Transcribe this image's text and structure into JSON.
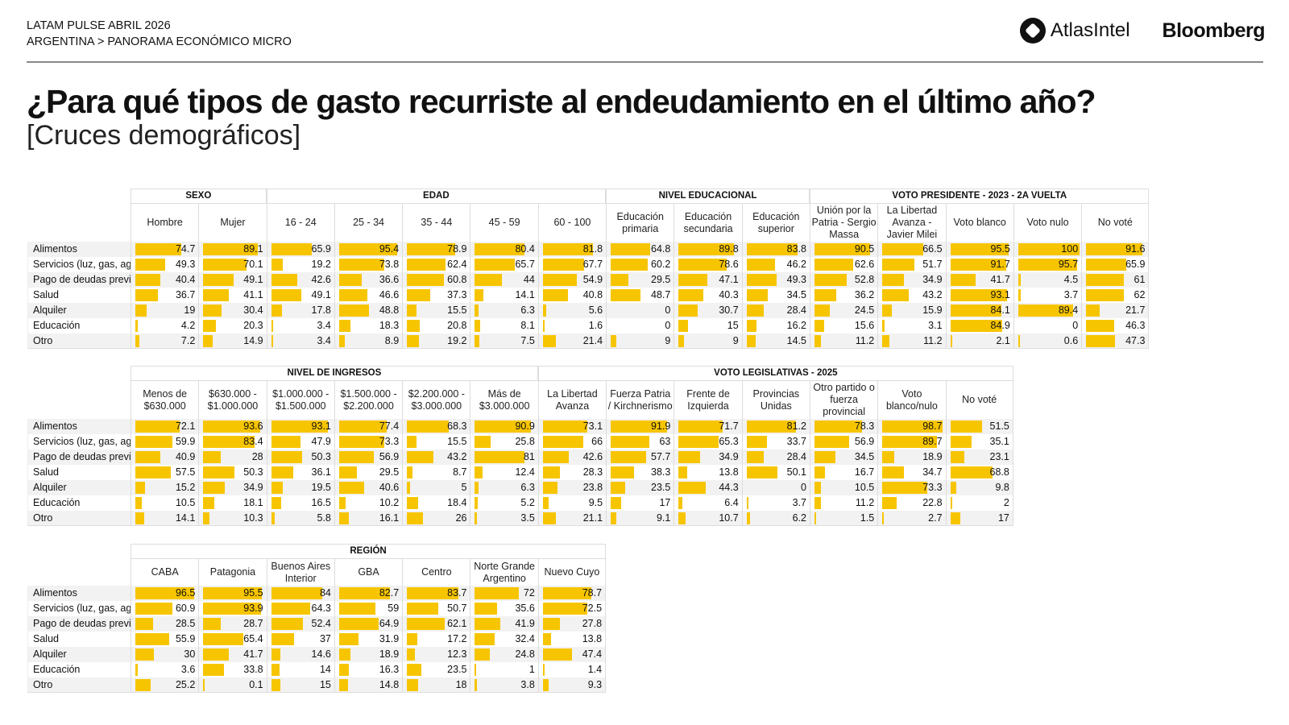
{
  "header": {
    "line1": "LATAM PULSE ABRIL 2026",
    "line2": "ARGENTINA > PANORAMA ECONÓMICO MICRO",
    "logo1": "AtlasIntel",
    "logo2": "Bloomberg"
  },
  "title": "¿Para qué tipos de gasto recurriste al endeudamiento en el último año?",
  "subtitle": "[Cruces demográficos]",
  "colors": {
    "bar": "#F7C500",
    "alt_row": "#f2f2f2"
  },
  "row_labels": [
    "Alimentos",
    "Servicios (luz, gas, agı",
    "Pago de deudas previ",
    "Salud",
    "Alquiler",
    "Educación",
    "Otro"
  ],
  "tables": [
    {
      "groups": [
        {
          "label": "SEXO",
          "columns": [
            {
              "label": "Hombre",
              "values": [
                74.7,
                49.3,
                40.4,
                36.7,
                19,
                4.2,
                7.2
              ]
            },
            {
              "label": "Mujer",
              "values": [
                89.1,
                70.1,
                49.1,
                41.1,
                30.4,
                20.3,
                14.9
              ]
            }
          ]
        },
        {
          "label": "EDAD",
          "columns": [
            {
              "label": "16 - 24",
              "values": [
                65.9,
                19.2,
                42.6,
                49.1,
                17.8,
                3.4,
                3.4
              ]
            },
            {
              "label": "25 - 34",
              "values": [
                95.4,
                73.8,
                36.6,
                46.6,
                48.8,
                18.3,
                8.9
              ]
            },
            {
              "label": "35 - 44",
              "values": [
                78.9,
                62.4,
                60.8,
                37.3,
                15.5,
                20.8,
                19.2
              ]
            },
            {
              "label": "45 - 59",
              "values": [
                80.4,
                65.7,
                44,
                14.1,
                6.3,
                8.1,
                7.5
              ]
            },
            {
              "label": "60 - 100",
              "values": [
                81.8,
                67.7,
                54.9,
                40.8,
                5.6,
                1.6,
                21.4
              ]
            }
          ]
        },
        {
          "label": "NIVEL EDUCACIONAL",
          "columns": [
            {
              "label": "Educación primaria",
              "values": [
                64.8,
                60.2,
                29.5,
                48.7,
                0,
                0,
                9
              ]
            },
            {
              "label": "Educación secundaria",
              "values": [
                89.8,
                78.6,
                47.1,
                40.3,
                30.7,
                15,
                9
              ]
            },
            {
              "label": "Educación superior",
              "values": [
                83.8,
                46.2,
                49.3,
                34.5,
                28.4,
                16.2,
                14.5
              ]
            }
          ]
        },
        {
          "label": "VOTO PRESIDENTE - 2023 - 2A VUELTA",
          "columns": [
            {
              "label": "Unión por la Patria - Sergio Massa",
              "values": [
                90.5,
                62.6,
                52.8,
                36.2,
                24.5,
                15.6,
                11.2
              ]
            },
            {
              "label": "La Libertad Avanza - Javier Milei",
              "values": [
                66.5,
                51.7,
                34.9,
                43.2,
                15.9,
                3.1,
                11.2
              ]
            },
            {
              "label": "Voto blanco",
              "values": [
                95.5,
                91.7,
                41.7,
                93.1,
                84.1,
                84.9,
                2.1
              ]
            },
            {
              "label": "Voto nulo",
              "values": [
                100,
                95.7,
                4.5,
                3.7,
                89.4,
                0,
                0.6
              ]
            },
            {
              "label": "No voté",
              "values": [
                91.6,
                65.9,
                61,
                62,
                21.7,
                46.3,
                47.3
              ]
            }
          ]
        }
      ]
    },
    {
      "groups": [
        {
          "label": "NIVEL DE INGRESOS",
          "columns": [
            {
              "label": "Menos de $630.000",
              "values": [
                72.1,
                59.9,
                40.9,
                57.5,
                15.2,
                10.5,
                14.1
              ]
            },
            {
              "label": "$630.000 - $1.000.000",
              "values": [
                93.6,
                83.4,
                28,
                50.3,
                34.9,
                18.1,
                10.3
              ]
            },
            {
              "label": "$1.000.000 - $1.500.000",
              "values": [
                93.1,
                47.9,
                50.3,
                36.1,
                19.5,
                16.5,
                5.8
              ]
            },
            {
              "label": "$1.500.000 - $2.200.000",
              "values": [
                77.4,
                73.3,
                56.9,
                29.5,
                40.6,
                10.2,
                16.1
              ]
            },
            {
              "label": "$2.200.000 - $3.000.000",
              "values": [
                68.3,
                15.5,
                43.2,
                8.7,
                5,
                18.4,
                26
              ]
            },
            {
              "label": "Más de $3.000.000",
              "values": [
                90.9,
                25.8,
                81,
                12.4,
                6.3,
                5.2,
                3.5
              ]
            }
          ]
        },
        {
          "label": "VOTO LEGISLATIVAS - 2025",
          "columns": [
            {
              "label": "La Libertad Avanza",
              "values": [
                73.1,
                66,
                42.6,
                28.3,
                23.8,
                9.5,
                21.1
              ]
            },
            {
              "label": "Fuerza Patria / Kirchnerismo",
              "values": [
                91.9,
                63,
                57.7,
                38.3,
                23.5,
                17,
                9.1
              ]
            },
            {
              "label": "Frente de Izquierda",
              "values": [
                71.7,
                65.3,
                34.9,
                13.8,
                44.3,
                6.4,
                10.7
              ]
            },
            {
              "label": "Provincias Unidas",
              "values": [
                81.2,
                33.7,
                28.4,
                50.1,
                0,
                3.7,
                6.2
              ]
            },
            {
              "label": "Otro partido o fuerza provincial",
              "values": [
                78.3,
                56.9,
                34.5,
                16.7,
                10.5,
                11.2,
                1.5
              ]
            },
            {
              "label": "Voto blanco/nulo",
              "values": [
                98.7,
                89.7,
                18.9,
                34.7,
                73.3,
                22.8,
                2.7
              ]
            },
            {
              "label": "No voté",
              "values": [
                51.5,
                35.1,
                23.1,
                68.8,
                9.8,
                2,
                17
              ]
            }
          ]
        }
      ]
    },
    {
      "groups": [
        {
          "label": "REGIÓN",
          "columns": [
            {
              "label": "CABA",
              "values": [
                96.5,
                60.9,
                28.5,
                55.9,
                30,
                3.6,
                25.2
              ]
            },
            {
              "label": "Patagonia",
              "values": [
                95.5,
                93.9,
                28.7,
                65.4,
                41.7,
                33.8,
                0.1
              ]
            },
            {
              "label": "Buenos Aires Interior",
              "values": [
                84,
                64.3,
                52.4,
                37,
                14.6,
                14,
                15
              ]
            },
            {
              "label": "GBA",
              "values": [
                82.7,
                59,
                64.9,
                31.9,
                18.9,
                16.3,
                14.8
              ]
            },
            {
              "label": "Centro",
              "values": [
                83.7,
                50.7,
                62.1,
                17.2,
                12.3,
                23.5,
                18
              ]
            },
            {
              "label": "Norte Grande Argentino",
              "values": [
                72,
                35.6,
                41.9,
                32.4,
                24.8,
                1,
                3.8
              ]
            },
            {
              "label": "Nuevo Cuyo",
              "values": [
                78.7,
                72.5,
                27.8,
                13.8,
                47.4,
                1.4,
                9.3
              ]
            }
          ]
        }
      ]
    }
  ]
}
